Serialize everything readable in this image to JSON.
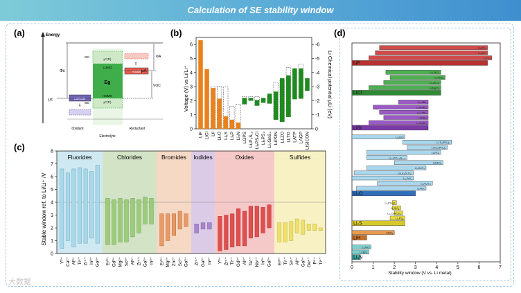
{
  "banner": {
    "title": "Calculation of SE stability window"
  },
  "watermark": "大数据",
  "panel_a": {
    "label": "(a)",
    "energy_label": "Energy",
    "phi_c": "Φc",
    "mu_c": "μc",
    "cathode": "Cathode",
    "sei": "SEI",
    "lumo": "LUMO",
    "homo": "HOMO",
    "eg": "Eg",
    "fermi_top": "μ*(Ti)",
    "fermi_bot": "μ*(Ti)",
    "anode": "Anode",
    "mu_a": "μA",
    "phi_a": "ΦA",
    "voc": "VOC",
    "oxidant": "Oxidant",
    "electrolyte": "Electrolyte",
    "reductant": "Reductant"
  },
  "colors": {
    "orange": "#e8821e",
    "green": "#1f8a1f",
    "fluorides_bg": "#cfe9f3",
    "chlorides_bg": "#d3e3c6",
    "bromides_bg": "#f6d9c4",
    "iodides_bg": "#dccbe6",
    "oxides_bg": "#f6c9c9",
    "sulfides_bg": "#f7f1c4",
    "d_red": "#d24a4a",
    "d_green": "#4caf50",
    "d_purple": "#9b59c6",
    "d_blue": "#a9d7ee",
    "d_yellow": "#e6dc44",
    "d_orange": "#e89a4e",
    "d_teal": "#7fcfcf"
  },
  "chart_data": [
    {
      "id": "b",
      "label": "(b)",
      "type": "bar",
      "ylabel": "Voltage (V) vs Li/Li⁺",
      "ylabel2": "Li Chemical potential μLi (eV)",
      "ylim": [
        0,
        6.5
      ],
      "yticks": [
        0,
        1,
        2,
        3,
        4,
        5,
        6
      ],
      "y2ticks": [
        "0",
        "-1",
        "-2",
        "-3",
        "-4",
        "-5",
        "-6"
      ],
      "categories": [
        "LiF",
        "LiCl",
        "LiI",
        "Li₂O",
        "Li₂S",
        "Li₃P",
        "Li₃N",
        "LGPS",
        "Li₇P₃S₁₁",
        "Li₆PS₅Cl",
        "Li₃PS₄",
        "Li₄GeS₄",
        "LiPON",
        "LLZO",
        "LLTO",
        "LATP",
        "LAGP",
        "LISICON"
      ],
      "series": [
        {
          "name": "Orange (binary)",
          "bottom": [
            0,
            0,
            0,
            0,
            0,
            0,
            0
          ],
          "top": [
            6.3,
            4.25,
            2.9,
            2.15,
            0.9,
            0.65,
            0.45
          ],
          "dashed": [
            null,
            null,
            2.98,
            3.02,
            2.98,
            1.6,
            1.75
          ]
        },
        {
          "name": "Green (SE)",
          "bottom": [
            1.75,
            2.0,
            1.65,
            1.85,
            1.8,
            0.65,
            0.5,
            0.85,
            2.1,
            2.15,
            2.7
          ],
          "top": [
            2.2,
            2.2,
            2.05,
            2.2,
            2.5,
            2.65,
            3.6,
            3.8,
            4.3,
            4.3,
            3.6
          ],
          "dashed": [
            2.3,
            2.3,
            2.3,
            null,
            2.3,
            3.3,
            3.5,
            4.35,
            null,
            4.6,
            null
          ]
        }
      ]
    },
    {
      "id": "c",
      "label": "(c)",
      "type": "bar",
      "ylabel": "Stable window ref. to Li/Li⁺ /V",
      "ylim": [
        0,
        8
      ],
      "yticks": [
        0,
        1,
        2,
        3,
        4,
        5,
        6,
        7,
        8
      ],
      "reference_line": 4.0,
      "groups": [
        {
          "name": "Fluorides",
          "dopants": [
            "Y³⁺",
            "Ca²⁺",
            "Al³⁺",
            "Ti⁴⁺",
            "Zr⁴⁺",
            "In³⁺",
            "Ga³⁺"
          ],
          "bottom": [
            0.4,
            1.0,
            0.5,
            0.8,
            0.8,
            1.2,
            0.8
          ],
          "top": [
            6.6,
            6.3,
            6.6,
            6.7,
            6.6,
            6.4,
            6.9
          ]
        },
        {
          "name": "Chlorides",
          "dopants": [
            "Er³⁺",
            "Gd³⁺",
            "Mg²⁺",
            "Sc³⁺",
            "Al³⁺",
            "Zr⁴⁺",
            "Ga³⁺",
            "In³⁺"
          ],
          "bottom": [
            0.7,
            0.7,
            0.9,
            0.9,
            1.3,
            1.6,
            2.3,
            2.3
          ],
          "top": [
            4.3,
            4.2,
            4.3,
            4.2,
            4.3,
            4.2,
            4.4,
            4.3
          ]
        },
        {
          "name": "Bromides",
          "dopants": [
            "Er³⁺",
            "Mg²⁺",
            "Zn²⁺",
            "Sc³⁺",
            "Ga³⁺"
          ],
          "bottom": [
            0.6,
            1.0,
            1.4,
            1.9,
            2.1
          ],
          "top": [
            3.1,
            3.1,
            3.1,
            3.3,
            3.1
          ]
        },
        {
          "name": "Iodides",
          "dopants": [
            "Zr⁴⁺",
            "Ga³⁺",
            "In³⁺"
          ],
          "bottom": [
            1.6,
            1.9,
            1.9
          ],
          "top": [
            2.3,
            2.4,
            2.4
          ]
        },
        {
          "name": "Oxides",
          "dopants": [
            "Y³⁺",
            "Zr⁴⁺",
            "Ti⁴⁺",
            "Gd³⁺",
            "Al³⁺",
            "Ta⁵⁺",
            "Nb⁵⁺",
            "In³⁺",
            "Ga³⁺"
          ],
          "bottom": [
            0.2,
            0.3,
            0.5,
            0.6,
            0.6,
            1.2,
            1.3,
            1.6,
            2.0
          ],
          "top": [
            2.9,
            3.0,
            3.1,
            3.5,
            3.3,
            3.7,
            3.7,
            3.6,
            3.8
          ]
        },
        {
          "name": "Sulfides",
          "dopants": [
            "Er³⁺",
            "Ti⁴⁺",
            "Si⁴⁺",
            "Al³⁺",
            "Ga³⁺",
            "Ge⁴⁺",
            "P⁵⁺",
            "Ti⁴⁺"
          ],
          "bottom": [
            0.9,
            0.9,
            1.0,
            1.6,
            1.5,
            1.8,
            1.8,
            1.8
          ],
          "top": [
            2.4,
            2.4,
            2.5,
            2.7,
            2.6,
            2.3,
            2.3,
            2.0
          ]
        }
      ]
    },
    {
      "id": "d",
      "label": "(d)",
      "type": "bar",
      "orientation": "horizontal",
      "xlabel": "Stability window (V vs. Li metal)",
      "xlim": [
        0,
        7
      ],
      "xticks": [
        0,
        1,
        2,
        3,
        4,
        5,
        6,
        7
      ],
      "groups": [
        {
          "name": "LiF",
          "color": "d_red",
          "items": [
            {
              "name": "Li₂ZrF₆",
              "start": 1.3,
              "end": 6.4
            },
            {
              "name": "Li₃AlF₆",
              "start": 1.1,
              "end": 6.4
            },
            {
              "name": "LiYF₄",
              "start": 0.8,
              "end": 6.6
            },
            {
              "name": "LiF",
              "start": 0.0,
              "end": 6.4,
              "base": true
            }
          ]
        },
        {
          "name": "LiCl",
          "color": "d_green",
          "items": [
            {
              "name": "Li₃CdCl₄",
              "start": 1.6,
              "end": 4.2
            },
            {
              "name": "Li₂AlCl₄",
              "start": 1.8,
              "end": 4.4
            },
            {
              "name": "Li₂ZnCl₄",
              "start": 1.5,
              "end": 4.2
            },
            {
              "name": "Li₃MgCl₄",
              "start": 0.8,
              "end": 4.2
            },
            {
              "name": "LiCl",
              "start": 0.0,
              "end": 4.2,
              "base": true
            }
          ]
        },
        {
          "name": "LiBr",
          "color": "d_purple",
          "items": [
            {
              "name": "Li₂HfBr₆",
              "start": 2.2,
              "end": 3.6
            },
            {
              "name": "Li₂MnBr₄",
              "start": 1.0,
              "end": 3.6
            },
            {
              "name": "Li₂ZnBr₄",
              "start": 1.3,
              "end": 3.6
            },
            {
              "name": "LiAlBr₄",
              "start": 1.5,
              "end": 3.6
            },
            {
              "name": "Li₂MgBr₄",
              "start": 0.8,
              "end": 3.6
            },
            {
              "name": "LiBr",
              "start": 0.0,
              "end": 3.6,
              "base": true
            }
          ]
        },
        {
          "name": "Li₂O",
          "color": "d_blue",
          "items": [
            {
              "name": "Li₃OCl",
              "start": 0.0,
              "end": 2.5
            },
            {
              "name": "Li₃Ti₂(PO₄)₃",
              "start": 2.4,
              "end": 4.7
            },
            {
              "name": "LiGe₂(PO₄)₃",
              "start": 2.6,
              "end": 4.5
            },
            {
              "name": "Li₃PO₄",
              "start": 0.7,
              "end": 4.2
            },
            {
              "name": "Li₃.₃PO₃.₉N₀.₁₇",
              "start": 0.7,
              "end": 2.6
            },
            {
              "name": "LiNbO₃",
              "start": 2.0,
              "end": 4.3
            },
            {
              "name": "Li₂GeO₃",
              "start": 0.7,
              "end": 3.5
            },
            {
              "name": "Li₇La₃Zr₂O₁₂",
              "start": 0.1,
              "end": 2.9
            },
            {
              "name": "Li₂ZrO₃",
              "start": 0.0,
              "end": 2.9
            },
            {
              "name": "Li₄Ti₅O₁₂",
              "start": 1.2,
              "end": 3.8
            },
            {
              "name": "LiAlO₂",
              "start": 0.2,
              "end": 3.5
            },
            {
              "name": "Li₂O",
              "start": 0.0,
              "end": 3.0,
              "base": true
            }
          ]
        },
        {
          "name": "Li₂S",
          "color": "d_yellow",
          "items": [
            {
              "name": "Li₆PS₅Cl",
              "start": 1.9,
              "end": 2.1
            },
            {
              "name": "Li₄SiS₄",
              "start": 1.9,
              "end": 2.3
            },
            {
              "name": "Li₁₀GeP₂S₁₂",
              "start": 2.0,
              "end": 2.4
            },
            {
              "name": "Li₃PS₄",
              "start": 1.8,
              "end": 2.5
            },
            {
              "name": "Li₂S",
              "start": 0.0,
              "end": 2.5,
              "base": true
            }
          ]
        },
        {
          "name": "LiH",
          "color": "d_orange",
          "items": [
            {
              "name": "LiBH₄",
              "start": 0.0,
              "end": 2.0
            },
            {
              "name": "LiH",
              "start": 0.0,
              "end": 0.7,
              "base": true
            }
          ]
        },
        {
          "name": "Li₃N",
          "color": "d_teal",
          "items": [
            {
              "name": "Li₃NCl",
              "start": 0.0,
              "end": 0.9
            },
            {
              "name": "Li₃BN₂",
              "start": 0.0,
              "end": 0.8
            },
            {
              "name": "Li₃N",
              "start": 0.0,
              "end": 0.4,
              "base": true
            }
          ]
        }
      ]
    }
  ]
}
